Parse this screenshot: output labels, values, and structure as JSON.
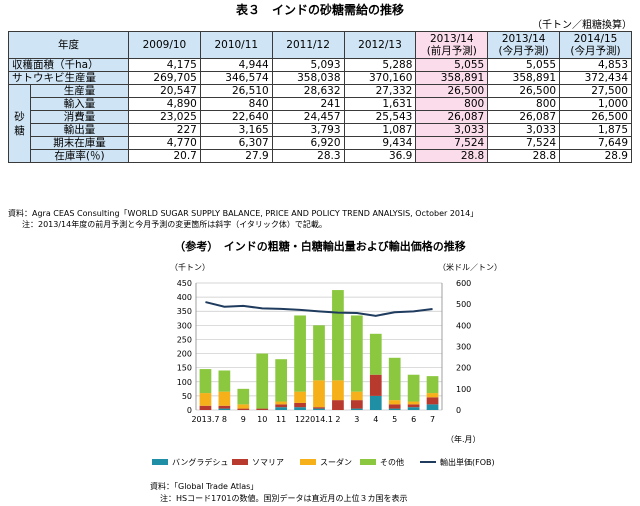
{
  "table": {
    "title": "表３　インドの砂糖需給の推移",
    "unit": "（千トン／粗糖換算）",
    "year_header": "年度",
    "columns": [
      {
        "l1": "2009/10",
        "l2": ""
      },
      {
        "l1": "2010/11",
        "l2": ""
      },
      {
        "l1": "2011/12",
        "l2": ""
      },
      {
        "l1": "2012/13",
        "l2": ""
      },
      {
        "l1": "2013/14",
        "l2": "(前月予測)"
      },
      {
        "l1": "2013/14",
        "l2": "(今月予測)"
      },
      {
        "l1": "2014/15",
        "l2": "(今月予測)"
      }
    ],
    "sugar_group": "砂糖",
    "rows": [
      {
        "label": "収穫面積（千ha）",
        "values": [
          "4,175",
          "4,944",
          "5,093",
          "5,288",
          "5,055",
          "5,055",
          "4,853"
        ]
      },
      {
        "label": "サトウキビ生産量",
        "values": [
          "269,705",
          "346,574",
          "358,038",
          "370,160",
          "358,891",
          "358,891",
          "372,434"
        ]
      },
      {
        "label": "生産量",
        "values": [
          "20,547",
          "26,510",
          "28,632",
          "27,332",
          "26,500",
          "26,500",
          "27,500"
        ]
      },
      {
        "label": "輸入量",
        "values": [
          "4,890",
          "840",
          "241",
          "1,631",
          "800",
          "800",
          "1,000"
        ]
      },
      {
        "label": "消費量",
        "values": [
          "23,025",
          "22,640",
          "24,457",
          "25,543",
          "26,087",
          "26,087",
          "26,500"
        ]
      },
      {
        "label": "輸出量",
        "values": [
          "227",
          "3,165",
          "3,793",
          "1,087",
          "3,033",
          "3,033",
          "1,875"
        ]
      },
      {
        "label": "期末在庫量",
        "values": [
          "4,770",
          "6,307",
          "6,920",
          "9,434",
          "7,524",
          "7,524",
          "7,649"
        ]
      },
      {
        "label": "在庫率(％)",
        "values": [
          "20.7",
          "27.9",
          "28.3",
          "36.9",
          "28.8",
          "28.8",
          "28.9"
        ]
      }
    ],
    "source": "資料：Agra CEAS Consulting「WORLD SUGAR SUPPLY BALANCE, PRICE AND POLICY TREND ANALYSIS, October 2014」",
    "note": "注：2013/14年度の前月予測と今月予測の変更箇所は斜字（イタリック体）で記載。"
  },
  "chart_data": {
    "type": "bar",
    "title": "（参考）　インドの粗糖・白糖輸出量および輸出価格の推移",
    "ylabel_left": "（千トン）",
    "ylabel_right": "（米ドル／トン）",
    "xlabel": "（年.月）",
    "ylim_left": [
      0,
      450
    ],
    "ylim_right": [
      0,
      600
    ],
    "yticks_left": [
      "0",
      "50",
      "100",
      "150",
      "200",
      "250",
      "300",
      "350",
      "400",
      "450"
    ],
    "yticks_right": [
      "0",
      "100",
      "200",
      "300",
      "400",
      "500",
      "600"
    ],
    "categories": [
      "2013.7",
      "8",
      "9",
      "10",
      "11",
      "12",
      "2014.1",
      "2",
      "3",
      "4",
      "5",
      "6",
      "7"
    ],
    "stacked": true,
    "series": [
      {
        "name": "バングラデシュ",
        "color": "#1f8fa5",
        "values": [
          0,
          5,
          0,
          0,
          10,
          10,
          5,
          0,
          5,
          50,
          5,
          10,
          20
        ]
      },
      {
        "name": "ソマリア",
        "color": "#b83a2f",
        "values": [
          15,
          10,
          5,
          5,
          10,
          15,
          5,
          35,
          30,
          75,
          15,
          10,
          25
        ]
      },
      {
        "name": "スーダン",
        "color": "#f5b01a",
        "values": [
          45,
          50,
          15,
          0,
          10,
          40,
          95,
          70,
          30,
          0,
          15,
          10,
          15
        ]
      },
      {
        "name": "その他",
        "color": "#8cc83f",
        "values": [
          85,
          75,
          55,
          195,
          150,
          270,
          195,
          320,
          270,
          145,
          150,
          95,
          60
        ]
      }
    ],
    "line_series": {
      "name": "輸出単価(FOB)",
      "color": "#1f3b5e",
      "axis": "right",
      "values": [
        510,
        488,
        492,
        480,
        478,
        473,
        466,
        460,
        458,
        445,
        462,
        466,
        477
      ]
    },
    "grid": true,
    "legend_position": "bottom",
    "source": "資料：「Global Trade Atlas」",
    "note": "注：HSコード1701の数値。国別データは直近月の上位３カ国を表示"
  }
}
